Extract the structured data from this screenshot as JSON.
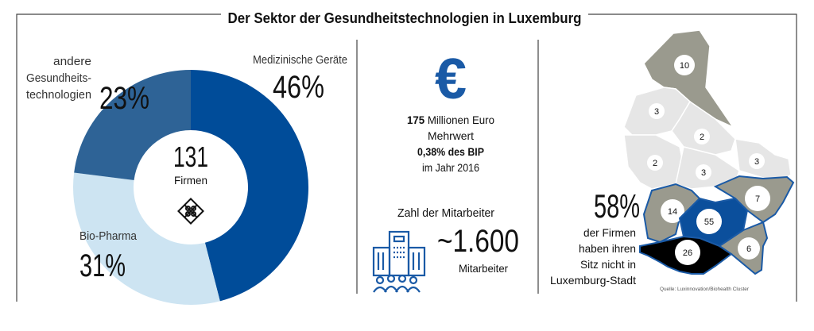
{
  "title": "Der Sektor der Gesundheitstechnologien in Luxemburg",
  "chart_data": {
    "type": "pie",
    "style": "donut",
    "title": "Der Sektor der Gesundheitstechnologien in Luxemburg",
    "center_value": "131",
    "center_label": "Firmen",
    "slices": [
      {
        "label": "Medizinische Geräte",
        "value": 46,
        "value_label": "46%",
        "color": "#004c99"
      },
      {
        "label": "Bio-Pharma",
        "value": 31,
        "value_label": "31%",
        "color": "#cde4f2"
      },
      {
        "label_lines": [
          "andere",
          "Gesundheits-",
          "technologien"
        ],
        "value": 23,
        "value_label": "23%",
        "color": "#2e6396"
      }
    ]
  },
  "economy": {
    "icon": "euro-icon",
    "amount": "175",
    "amount_rest": " Millionen Euro",
    "line2": "Mehrwert",
    "line3": "0,38% des BIP",
    "line4": "im Jahr 2016",
    "color": "#1a5aa6"
  },
  "employees": {
    "heading": "Zahl der Mitarbeiter",
    "icon": "office-building-people-icon",
    "value": "~1.600",
    "unit": "Mitarbeiter"
  },
  "map": {
    "headline": "58%",
    "caption_lines": [
      "der Firmen",
      "haben ihren",
      "Sitz nicht in",
      "Luxemburg-Stadt"
    ],
    "source": "Quelle: Luxinnovation/Biohealth Cluster",
    "regions": [
      {
        "count": "10",
        "kind": "gray"
      },
      {
        "count": "3",
        "kind": "light"
      },
      {
        "count": "2",
        "kind": "light"
      },
      {
        "count": "2",
        "kind": "light"
      },
      {
        "count": "3",
        "kind": "light"
      },
      {
        "count": "3",
        "kind": "light"
      },
      {
        "count": "14",
        "kind": "gray"
      },
      {
        "count": "55",
        "kind": "blue"
      },
      {
        "count": "7",
        "kind": "gray"
      },
      {
        "count": "6",
        "kind": "gray"
      },
      {
        "count": "26",
        "kind": "black"
      }
    ]
  }
}
